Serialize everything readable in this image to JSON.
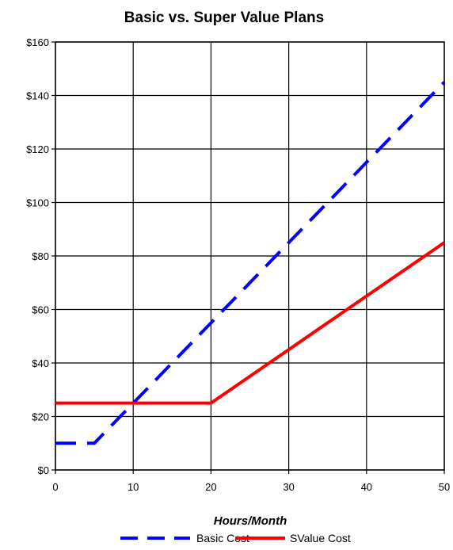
{
  "chart_data": {
    "type": "line",
    "title": "Basic vs. Super Value Plans",
    "xlabel": "Hours/Month",
    "ylabel": "",
    "xlim": [
      0,
      50
    ],
    "ylim": [
      0,
      160
    ],
    "x_ticks": [
      0,
      10,
      20,
      30,
      40,
      50
    ],
    "y_ticks": [
      0,
      20,
      40,
      60,
      80,
      100,
      120,
      140,
      160
    ],
    "y_tick_labels": [
      "$0",
      "$20",
      "$40",
      "$60",
      "$80",
      "$100",
      "$120",
      "$140",
      "$160"
    ],
    "grid": true,
    "legend_position": "bottom",
    "series": [
      {
        "name": "Basic Cost",
        "color": "#0000ff",
        "style": "dashed",
        "x": [
          0,
          5,
          50
        ],
        "y": [
          10,
          10,
          145
        ]
      },
      {
        "name": "SValue Cost",
        "color": "#ff0000",
        "style": "solid",
        "x": [
          0,
          20,
          50
        ],
        "y": [
          25,
          25,
          85
        ]
      }
    ]
  }
}
